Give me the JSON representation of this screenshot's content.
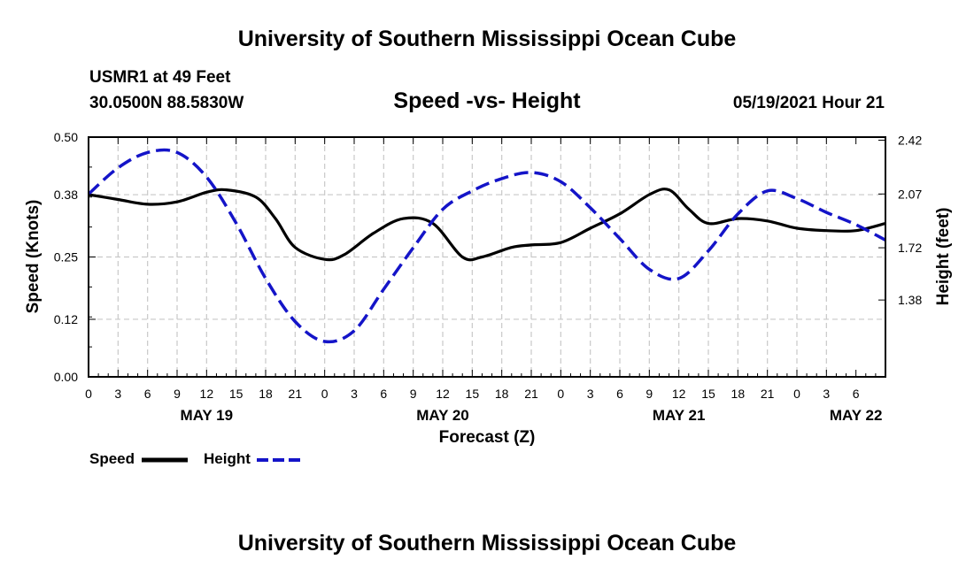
{
  "header": {
    "top_title": "University of Southern Mississippi Ocean Cube",
    "station_name": "USMR1 at 49 Feet",
    "coordinates": "30.0500N  88.5830W",
    "subtitle": "Speed -vs- Height",
    "datetime": "05/19/2021 Hour 21"
  },
  "footer": {
    "bottom_title": "University of Southern Mississippi Ocean Cube"
  },
  "legend": {
    "speed_label": "Speed",
    "height_label": "Height",
    "speed_color": "#000000",
    "height_color": "#1414c8"
  },
  "chart_data": {
    "type": "line",
    "title": "Speed -vs- Height",
    "xlabel": "Forecast (Z)",
    "ylabel": "Speed (Knots)",
    "y2label": "Height (feet)",
    "x_range_hours": [
      0,
      81
    ],
    "x_tick_labels": [
      "0",
      "3",
      "6",
      "9",
      "12",
      "15",
      "18",
      "21",
      "0",
      "3",
      "6",
      "9",
      "12",
      "15",
      "18",
      "21",
      "0",
      "3",
      "6",
      "9",
      "12",
      "15",
      "18",
      "21",
      "0",
      "3",
      "6"
    ],
    "date_labels": [
      {
        "label": "MAY 19",
        "hour": 12
      },
      {
        "label": "MAY 20",
        "hour": 36
      },
      {
        "label": "MAY 21",
        "hour": 60
      },
      {
        "label": "MAY 22",
        "hour": 78
      }
    ],
    "ylim": [
      0,
      0.5
    ],
    "y_ticks": [
      0.0,
      0.12,
      0.25,
      0.38,
      0.5
    ],
    "y_tick_labels": [
      "0.00",
      "0.12",
      "0.25",
      "0.38",
      "0.50"
    ],
    "y2lim": [
      0.88,
      2.44
    ],
    "y2_ticks": [
      1.38,
      1.72,
      2.07,
      2.42
    ],
    "y2_tick_labels": [
      "1.38",
      "1.72",
      "2.07",
      "2.42"
    ],
    "grid": true,
    "series": [
      {
        "name": "Speed",
        "axis": "left",
        "color": "#000000",
        "dash": "solid",
        "x": [
          0,
          3,
          6,
          9,
          12,
          14,
          17,
          19,
          21,
          24,
          26,
          29,
          32,
          35,
          38,
          40,
          43,
          45,
          48,
          51,
          54,
          57,
          59,
          61,
          63,
          66,
          69,
          72,
          75,
          78,
          81
        ],
        "values": [
          0.38,
          0.37,
          0.36,
          0.365,
          0.385,
          0.39,
          0.375,
          0.33,
          0.27,
          0.245,
          0.255,
          0.3,
          0.33,
          0.32,
          0.25,
          0.25,
          0.27,
          0.275,
          0.28,
          0.31,
          0.34,
          0.38,
          0.39,
          0.35,
          0.32,
          0.33,
          0.325,
          0.31,
          0.305,
          0.305,
          0.32
        ]
      },
      {
        "name": "Height",
        "axis": "right",
        "color": "#1414c8",
        "dash": "dashed",
        "x": [
          0,
          3,
          6,
          9,
          12,
          15,
          18,
          21,
          24,
          27,
          30,
          33,
          36,
          39,
          42,
          45,
          48,
          51,
          54,
          57,
          60,
          63,
          66,
          69,
          72,
          75,
          78,
          81
        ],
        "values": [
          2.07,
          2.24,
          2.34,
          2.34,
          2.18,
          1.88,
          1.52,
          1.24,
          1.11,
          1.18,
          1.45,
          1.72,
          1.97,
          2.09,
          2.17,
          2.21,
          2.15,
          1.98,
          1.78,
          1.58,
          1.52,
          1.7,
          1.94,
          2.09,
          2.04,
          1.95,
          1.87,
          1.77
        ]
      }
    ]
  }
}
